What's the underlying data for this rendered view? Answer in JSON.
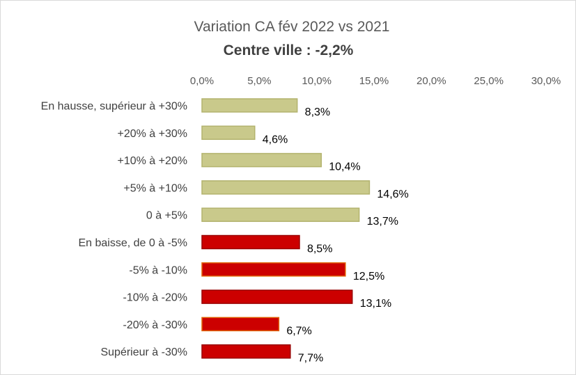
{
  "chart_data": {
    "type": "bar",
    "orientation": "horizontal",
    "title": "Variation CA fév 2022 vs 2021",
    "subtitle": "Centre ville : -2,2%",
    "categories": [
      "En hausse, supérieur à +30%",
      "+20% à +30%",
      "+10% à +20%",
      "+5% à +10%",
      "0 à +5%",
      "En baisse, de 0 à -5%",
      "-5% à -10%",
      "-10% à -20%",
      "-20% à -30%",
      "Supérieur à -30%"
    ],
    "values": [
      8.3,
      4.6,
      10.4,
      14.6,
      13.7,
      8.5,
      12.5,
      13.1,
      6.7,
      7.7
    ],
    "data_labels": [
      "8,3%",
      "4,6%",
      "10,4%",
      "14,6%",
      "13,7%",
      "8,5%",
      "12,5%",
      "13,1%",
      "6,7%",
      "7,7%"
    ],
    "bar_colors": [
      "#c9c98b",
      "#c9c98b",
      "#c9c98b",
      "#c9c98b",
      "#c9c98b",
      "#cc0000",
      "#cc0000",
      "#cc0000",
      "#cc0000",
      "#cc0000"
    ],
    "bar_edge_colors": [
      "#b3b36e",
      "#b3b36e",
      "#b3b36e",
      "#b3b36e",
      "#b3b36e",
      "#990000",
      "#e06000",
      "#990000",
      "#e06000",
      "#990000"
    ],
    "xlim": [
      0,
      30
    ],
    "x_ticks": [
      0,
      5,
      10,
      15,
      20,
      25,
      30
    ],
    "x_tick_labels": [
      "0,0%",
      "5,0%",
      "10,0%",
      "15,0%",
      "20,0%",
      "25,0%",
      "30,0%"
    ],
    "axis_position": "top",
    "grid": false,
    "legend": "none"
  }
}
